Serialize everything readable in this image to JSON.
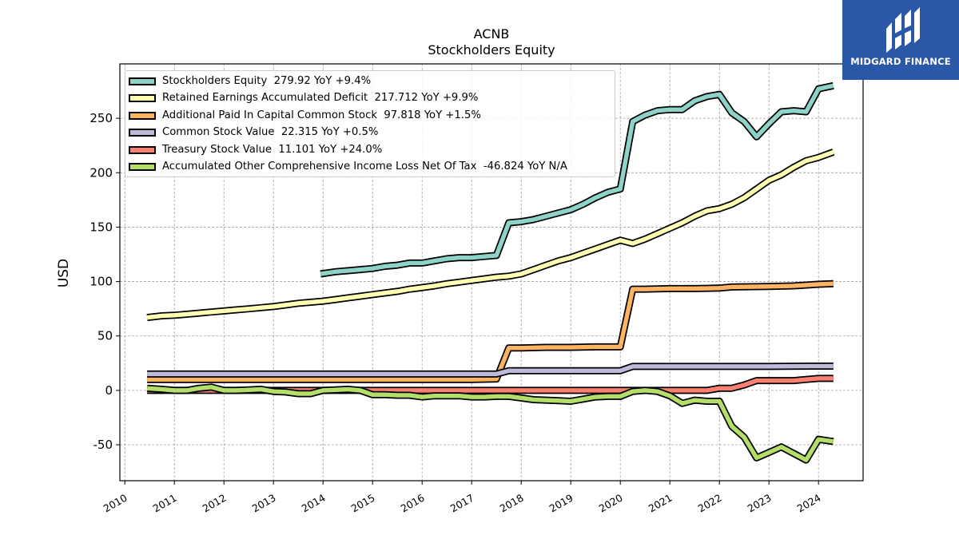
{
  "chart_data": {
    "type": "line",
    "title": "ACNB",
    "subtitle": "Stockholders  Equity",
    "ylabel": "USD",
    "xlabel": "",
    "xlim": [
      2009.9,
      2024.9
    ],
    "ylim": [
      -83,
      300
    ],
    "grid": true,
    "legend_position": "top-left",
    "x_ticks": [
      "2010",
      "2011",
      "2012",
      "2013",
      "2014",
      "2015",
      "2016",
      "2017",
      "2018",
      "2019",
      "2020",
      "2021",
      "2022",
      "2023",
      "2024"
    ],
    "y_ticks": [
      "-50",
      "0",
      "50",
      "100",
      "150",
      "200",
      "250"
    ],
    "series": [
      {
        "name": "Stockholders Equity  279.92 YoY +9.4%",
        "color": "#8dd3c7",
        "points": [
          [
            2013.95,
            107
          ],
          [
            2014.25,
            109
          ],
          [
            2014.5,
            110
          ],
          [
            2014.75,
            111
          ],
          [
            2015.0,
            112
          ],
          [
            2015.25,
            114
          ],
          [
            2015.5,
            115
          ],
          [
            2015.75,
            117
          ],
          [
            2016.0,
            117
          ],
          [
            2016.25,
            119
          ],
          [
            2016.5,
            121
          ],
          [
            2016.75,
            122
          ],
          [
            2017.0,
            122
          ],
          [
            2017.25,
            123
          ],
          [
            2017.5,
            124
          ],
          [
            2017.75,
            154
          ],
          [
            2018.0,
            155
          ],
          [
            2018.25,
            157
          ],
          [
            2018.5,
            160
          ],
          [
            2018.75,
            163
          ],
          [
            2019.0,
            166
          ],
          [
            2019.25,
            171
          ],
          [
            2019.5,
            177
          ],
          [
            2019.75,
            182
          ],
          [
            2020.0,
            185
          ],
          [
            2020.25,
            247
          ],
          [
            2020.5,
            253
          ],
          [
            2020.75,
            257
          ],
          [
            2021.0,
            258
          ],
          [
            2021.25,
            258
          ],
          [
            2021.5,
            266
          ],
          [
            2021.75,
            270
          ],
          [
            2022.0,
            272
          ],
          [
            2022.25,
            255
          ],
          [
            2022.5,
            247
          ],
          [
            2022.75,
            233
          ],
          [
            2023.0,
            245
          ],
          [
            2023.25,
            256
          ],
          [
            2023.5,
            257
          ],
          [
            2023.75,
            256
          ],
          [
            2024.0,
            277
          ],
          [
            2024.3,
            280
          ]
        ]
      },
      {
        "name": "Retained Earnings Accumulated Deficit  217.712 YoY +9.9%",
        "color": "#ffffb3",
        "points": [
          [
            2010.45,
            67
          ],
          [
            2010.75,
            68.5
          ],
          [
            2011.0,
            69
          ],
          [
            2011.25,
            70
          ],
          [
            2011.5,
            71
          ],
          [
            2011.75,
            72
          ],
          [
            2012.0,
            73
          ],
          [
            2012.25,
            74
          ],
          [
            2012.5,
            75
          ],
          [
            2012.75,
            76
          ],
          [
            2013.0,
            77
          ],
          [
            2013.25,
            78.5
          ],
          [
            2013.5,
            80
          ],
          [
            2013.75,
            81
          ],
          [
            2014.0,
            82
          ],
          [
            2014.25,
            83.5
          ],
          [
            2014.5,
            85
          ],
          [
            2014.75,
            86.5
          ],
          [
            2015.0,
            88
          ],
          [
            2015.25,
            89.5
          ],
          [
            2015.5,
            91
          ],
          [
            2015.75,
            93
          ],
          [
            2016.0,
            94.5
          ],
          [
            2016.25,
            96
          ],
          [
            2016.5,
            98
          ],
          [
            2016.75,
            99.5
          ],
          [
            2017.0,
            101
          ],
          [
            2017.25,
            102.5
          ],
          [
            2017.5,
            104
          ],
          [
            2017.75,
            105
          ],
          [
            2018.0,
            107
          ],
          [
            2018.25,
            111
          ],
          [
            2018.5,
            115
          ],
          [
            2018.75,
            119
          ],
          [
            2019.0,
            122
          ],
          [
            2019.25,
            126
          ],
          [
            2019.5,
            130
          ],
          [
            2019.75,
            134
          ],
          [
            2020.0,
            138
          ],
          [
            2020.25,
            135
          ],
          [
            2020.5,
            139
          ],
          [
            2020.75,
            144
          ],
          [
            2021.0,
            149
          ],
          [
            2021.25,
            154
          ],
          [
            2021.5,
            160
          ],
          [
            2021.75,
            165
          ],
          [
            2022.0,
            167
          ],
          [
            2022.25,
            171
          ],
          [
            2022.5,
            177
          ],
          [
            2022.75,
            185
          ],
          [
            2023.0,
            193
          ],
          [
            2023.25,
            198
          ],
          [
            2023.5,
            205
          ],
          [
            2023.75,
            211
          ],
          [
            2024.0,
            214
          ],
          [
            2024.3,
            219
          ]
        ]
      },
      {
        "name": "Additional Paid In Capital Common Stock  97.818 YoY +1.5%",
        "color": "#fdb462",
        "points": [
          [
            2010.45,
            10
          ],
          [
            2011.0,
            10
          ],
          [
            2012.0,
            10
          ],
          [
            2013.0,
            10
          ],
          [
            2014.0,
            10
          ],
          [
            2015.0,
            10
          ],
          [
            2016.0,
            10
          ],
          [
            2017.0,
            10
          ],
          [
            2017.5,
            10.5
          ],
          [
            2017.75,
            39
          ],
          [
            2018.0,
            39
          ],
          [
            2018.5,
            39.5
          ],
          [
            2019.0,
            39.5
          ],
          [
            2019.5,
            40
          ],
          [
            2020.0,
            40
          ],
          [
            2020.25,
            93
          ],
          [
            2020.5,
            93
          ],
          [
            2021.0,
            93.5
          ],
          [
            2021.5,
            93.5
          ],
          [
            2022.0,
            94
          ],
          [
            2022.25,
            95
          ],
          [
            2023.0,
            95.5
          ],
          [
            2023.5,
            96
          ],
          [
            2024.0,
            97.5
          ],
          [
            2024.3,
            98
          ]
        ]
      },
      {
        "name": "Common Stock Value  22.315 YoY +0.5%",
        "color": "#bebada",
        "points": [
          [
            2010.45,
            15
          ],
          [
            2011.0,
            15
          ],
          [
            2012.0,
            15
          ],
          [
            2013.0,
            15
          ],
          [
            2014.0,
            15
          ],
          [
            2015.0,
            15
          ],
          [
            2016.0,
            15
          ],
          [
            2017.0,
            15
          ],
          [
            2017.5,
            15
          ],
          [
            2017.75,
            18
          ],
          [
            2018.0,
            18
          ],
          [
            2019.0,
            18
          ],
          [
            2020.0,
            18
          ],
          [
            2020.25,
            22
          ],
          [
            2021.0,
            22
          ],
          [
            2022.0,
            22
          ],
          [
            2023.0,
            22
          ],
          [
            2024.0,
            22.3
          ],
          [
            2024.3,
            22.3
          ]
        ]
      },
      {
        "name": "Treasury Stock Value  11.101 YoY +24.0%",
        "color": "#fb8072",
        "points": [
          [
            2010.45,
            0
          ],
          [
            2011.0,
            0
          ],
          [
            2012.0,
            0
          ],
          [
            2013.0,
            0
          ],
          [
            2014.0,
            0
          ],
          [
            2015.0,
            0
          ],
          [
            2016.0,
            0
          ],
          [
            2017.0,
            0
          ],
          [
            2018.0,
            0
          ],
          [
            2019.0,
            0
          ],
          [
            2020.0,
            0
          ],
          [
            2021.0,
            0
          ],
          [
            2021.75,
            0
          ],
          [
            2022.0,
            2
          ],
          [
            2022.25,
            2
          ],
          [
            2022.5,
            5
          ],
          [
            2022.75,
            9
          ],
          [
            2023.0,
            9
          ],
          [
            2023.25,
            9
          ],
          [
            2023.5,
            9
          ],
          [
            2023.75,
            10
          ],
          [
            2024.0,
            11
          ],
          [
            2024.3,
            11
          ]
        ]
      },
      {
        "name": "Accumulated Other Comprehensive Income Loss Net Of Tax  -46.824 YoY N/A",
        "color": "#b3de69",
        "points": [
          [
            2010.45,
            2
          ],
          [
            2010.75,
            1
          ],
          [
            2011.0,
            0
          ],
          [
            2011.25,
            0
          ],
          [
            2011.5,
            2
          ],
          [
            2011.75,
            3
          ],
          [
            2012.0,
            0
          ],
          [
            2012.25,
            0
          ],
          [
            2012.5,
            0.5
          ],
          [
            2012.75,
            1
          ],
          [
            2013.0,
            -1
          ],
          [
            2013.25,
            -1.5
          ],
          [
            2013.5,
            -3
          ],
          [
            2013.75,
            -3
          ],
          [
            2014.0,
            0
          ],
          [
            2014.25,
            0.5
          ],
          [
            2014.5,
            1
          ],
          [
            2014.75,
            0
          ],
          [
            2015.0,
            -4
          ],
          [
            2015.25,
            -4
          ],
          [
            2015.5,
            -4.5
          ],
          [
            2015.75,
            -4.5
          ],
          [
            2016.0,
            -6
          ],
          [
            2016.25,
            -5
          ],
          [
            2016.5,
            -5
          ],
          [
            2016.75,
            -5
          ],
          [
            2017.0,
            -6
          ],
          [
            2017.25,
            -6
          ],
          [
            2017.5,
            -5.5
          ],
          [
            2017.75,
            -5.5
          ],
          [
            2018.0,
            -7
          ],
          [
            2018.25,
            -8.5
          ],
          [
            2018.5,
            -9
          ],
          [
            2018.75,
            -9.5
          ],
          [
            2019.0,
            -10
          ],
          [
            2019.25,
            -8
          ],
          [
            2019.5,
            -6
          ],
          [
            2019.75,
            -5.5
          ],
          [
            2020.0,
            -5.5
          ],
          [
            2020.25,
            -1
          ],
          [
            2020.5,
            0
          ],
          [
            2020.75,
            -1
          ],
          [
            2021.0,
            -5
          ],
          [
            2021.25,
            -12
          ],
          [
            2021.5,
            -9
          ],
          [
            2021.75,
            -10
          ],
          [
            2022.0,
            -10
          ],
          [
            2022.25,
            -33
          ],
          [
            2022.5,
            -43
          ],
          [
            2022.75,
            -62
          ],
          [
            2023.0,
            -57
          ],
          [
            2023.25,
            -52
          ],
          [
            2023.5,
            -58
          ],
          [
            2023.75,
            -64
          ],
          [
            2024.0,
            -45
          ],
          [
            2024.3,
            -47
          ]
        ]
      }
    ]
  },
  "branding": {
    "logo_text": "MIDGARD FINANCE",
    "logo_color": "#2b57a8"
  }
}
